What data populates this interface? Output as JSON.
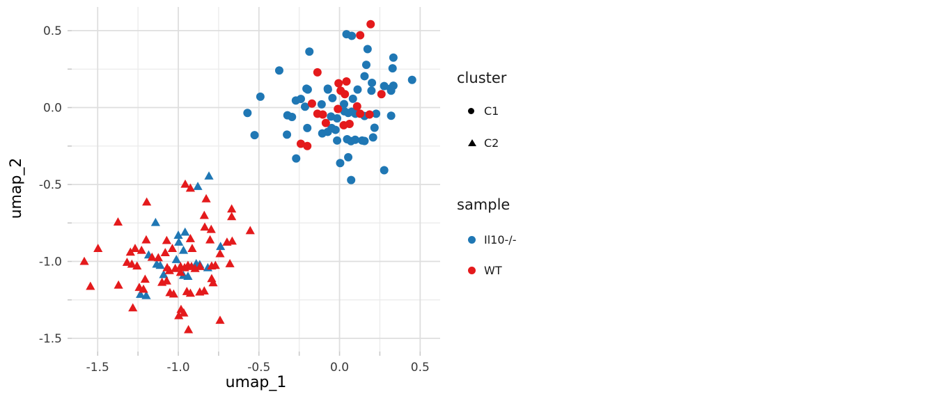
{
  "colors": {
    "blue": "#1f77b4",
    "red": "#e41a1c",
    "legend_glyph": "#000000",
    "grid_major": "#dedede",
    "grid_minor": "#ececec",
    "tick_mark": "#c9c9c9",
    "tick_text": "#3a3a3a",
    "axis_title": "#000000"
  },
  "legend": {
    "cluster": {
      "title": "cluster",
      "items": [
        {
          "label": "C1",
          "marker": "circle"
        },
        {
          "label": "C2",
          "marker": "triangle"
        }
      ]
    },
    "sample": {
      "title": "sample",
      "items": [
        {
          "label": "Il10-/-",
          "color": "#1f77b4"
        },
        {
          "label": "WT",
          "color": "#e41a1c"
        }
      ]
    }
  },
  "chart_data": {
    "type": "scatter",
    "title": "",
    "xlabel": "umap_1",
    "ylabel": "umap_2",
    "xlim": [
      -1.661,
      0.624
    ],
    "ylim": [
      -1.586,
      0.654
    ],
    "x_major_ticks": [
      -1.5,
      -1.0,
      -0.5,
      0.0,
      0.5
    ],
    "x_tick_labels": [
      "-1.5",
      "-1.0",
      "-0.5",
      "0.0",
      "0.5"
    ],
    "x_minor_ticks": [
      -1.25,
      -0.75,
      -0.25,
      0.25
    ],
    "y_major_ticks": [
      0.5,
      0.0,
      -0.5,
      -1.0,
      -1.5
    ],
    "y_tick_labels": [
      "0.5",
      "0.0",
      "-0.5",
      "-1.0",
      "-1.5"
    ],
    "y_minor_ticks": [
      0.25,
      -0.25,
      -0.75,
      -1.25
    ],
    "grid": true,
    "legend_position": "right",
    "series": [
      {
        "name": "C1 Il10-/-",
        "cluster": "C1",
        "sample": "Il10-/-",
        "marker": "circle",
        "color": "#1f77b4",
        "points": [
          [
            0.043,
            0.477
          ],
          [
            0.076,
            0.466
          ],
          [
            0.174,
            0.38
          ],
          [
            -0.187,
            0.364
          ],
          [
            0.334,
            0.325
          ],
          [
            0.166,
            0.278
          ],
          [
            0.329,
            0.255
          ],
          [
            -0.374,
            0.241
          ],
          [
            0.155,
            0.204
          ],
          [
            0.45,
            0.18
          ],
          [
            0.201,
            0.161
          ],
          [
            0.277,
            0.14
          ],
          [
            0.32,
            0.11
          ],
          [
            -0.491,
            0.071
          ],
          [
            -0.197,
            0.117
          ],
          [
            -0.072,
            0.117
          ],
          [
            0.083,
            0.057
          ],
          [
            0.112,
            0.117
          ],
          [
            0.317,
            0.124
          ],
          [
            0.334,
            0.142
          ],
          [
            0.198,
            0.11
          ],
          [
            -0.271,
            0.046
          ],
          [
            -0.24,
            0.056
          ],
          [
            -0.214,
            0.006
          ],
          [
            -0.111,
            0.021
          ],
          [
            -0.571,
            -0.035
          ],
          [
            -0.323,
            -0.05
          ],
          [
            -0.295,
            -0.061
          ],
          [
            -0.053,
            -0.058
          ],
          [
            0.03,
            -0.024
          ],
          [
            0.054,
            -0.035
          ],
          [
            0.076,
            -0.027
          ],
          [
            0.098,
            -0.04
          ],
          [
            0.227,
            -0.04
          ],
          [
            0.32,
            -0.053
          ],
          [
            -0.049,
            -0.133
          ],
          [
            -0.025,
            -0.145
          ],
          [
            -0.2,
            -0.133
          ],
          [
            -0.326,
            -0.176
          ],
          [
            -0.527,
            -0.179
          ],
          [
            0.217,
            -0.131
          ],
          [
            -0.107,
            -0.168
          ],
          [
            -0.073,
            -0.158
          ],
          [
            -0.015,
            -0.214
          ],
          [
            0.047,
            -0.206
          ],
          [
            0.071,
            -0.218
          ],
          [
            0.097,
            -0.209
          ],
          [
            0.14,
            -0.214
          ],
          [
            0.155,
            -0.217
          ],
          [
            0.208,
            -0.194
          ],
          [
            -0.269,
            -0.331
          ],
          [
            0.004,
            -0.361
          ],
          [
            0.054,
            -0.323
          ],
          [
            0.277,
            -0.407
          ],
          [
            0.072,
            -0.471
          ],
          [
            -0.205,
            0.123
          ],
          [
            -0.073,
            0.123
          ],
          [
            -0.044,
            0.062
          ],
          [
            0.028,
            0.023
          ],
          [
            -0.015,
            -0.07
          ],
          [
            0.155,
            -0.055
          ]
        ]
      },
      {
        "name": "C1 WT",
        "cluster": "C1",
        "sample": "WT",
        "marker": "circle",
        "color": "#e41a1c",
        "points": [
          [
            0.128,
            0.47
          ],
          [
            0.193,
            0.542
          ],
          [
            -0.137,
            0.229
          ],
          [
            -0.006,
            0.158
          ],
          [
            0.043,
            0.17
          ],
          [
            0.007,
            0.11
          ],
          [
            0.033,
            0.087
          ],
          [
            0.26,
            0.087
          ],
          [
            -0.171,
            0.026
          ],
          [
            -0.137,
            -0.04
          ],
          [
            -0.104,
            -0.045
          ],
          [
            -0.01,
            -0.009
          ],
          [
            0.128,
            -0.04
          ],
          [
            0.186,
            -0.045
          ],
          [
            -0.085,
            -0.1
          ],
          [
            0.026,
            -0.115
          ],
          [
            0.062,
            -0.106
          ],
          [
            -0.24,
            -0.235
          ],
          [
            -0.2,
            -0.25
          ],
          [
            0.109,
            0.008
          ]
        ]
      },
      {
        "name": "C2 Il10-/-",
        "cluster": "C2",
        "sample": "Il10-/-",
        "marker": "triangle",
        "color": "#1f77b4",
        "points": [
          [
            -0.81,
            -0.447
          ],
          [
            -0.879,
            -0.515
          ],
          [
            -1.141,
            -0.749
          ],
          [
            -1.0,
            -0.832
          ],
          [
            -0.958,
            -0.812
          ],
          [
            -0.997,
            -0.877
          ],
          [
            -0.968,
            -0.93
          ],
          [
            -0.738,
            -0.905
          ],
          [
            -1.184,
            -0.96
          ],
          [
            -1.012,
            -0.99
          ],
          [
            -1.134,
            -1.02
          ],
          [
            -1.112,
            -1.028
          ],
          [
            -0.889,
            -1.017
          ],
          [
            -0.867,
            -1.023
          ],
          [
            -0.817,
            -1.043
          ],
          [
            -1.091,
            -1.088
          ],
          [
            -0.968,
            -1.093
          ],
          [
            -0.94,
            -1.099
          ],
          [
            -1.235,
            -1.216
          ],
          [
            -1.199,
            -1.224
          ]
        ]
      },
      {
        "name": "C2 WT",
        "cluster": "C2",
        "sample": "WT",
        "marker": "triangle",
        "color": "#e41a1c",
        "points": [
          [
            -0.957,
            -0.5
          ],
          [
            -0.925,
            -0.526
          ],
          [
            -0.827,
            -0.595
          ],
          [
            -1.196,
            -0.616
          ],
          [
            -0.669,
            -0.661
          ],
          [
            -0.669,
            -0.711
          ],
          [
            -1.374,
            -0.746
          ],
          [
            -0.839,
            -0.703
          ],
          [
            -0.836,
            -0.779
          ],
          [
            -0.796,
            -0.794
          ],
          [
            -0.554,
            -0.802
          ],
          [
            -0.803,
            -0.862
          ],
          [
            -1.498,
            -0.918
          ],
          [
            -1.199,
            -0.862
          ],
          [
            -1.268,
            -0.918
          ],
          [
            -1.228,
            -0.93
          ],
          [
            -1.297,
            -0.942
          ],
          [
            -1.072,
            -0.866
          ],
          [
            -1.037,
            -0.918
          ],
          [
            -1.081,
            -0.945
          ],
          [
            -0.925,
            -0.854
          ],
          [
            -0.914,
            -0.918
          ],
          [
            -0.741,
            -0.952
          ],
          [
            -0.698,
            -0.877
          ],
          [
            -0.666,
            -0.87
          ],
          [
            -0.68,
            -1.017
          ],
          [
            -1.583,
            -1.002
          ],
          [
            -1.545,
            -1.164
          ],
          [
            -1.318,
            -1.008
          ],
          [
            -1.288,
            -1.02
          ],
          [
            -1.256,
            -1.032
          ],
          [
            -1.371,
            -1.156
          ],
          [
            -1.163,
            -0.975
          ],
          [
            -1.124,
            -0.978
          ],
          [
            -1.069,
            -1.043
          ],
          [
            -1.055,
            -1.062
          ],
          [
            -1.019,
            -1.048
          ],
          [
            -0.986,
            -1.035
          ],
          [
            -0.961,
            -1.043
          ],
          [
            -0.986,
            -1.073
          ],
          [
            -0.94,
            -1.028
          ],
          [
            -0.918,
            -1.035
          ],
          [
            -0.896,
            -1.048
          ],
          [
            -0.865,
            -1.035
          ],
          [
            -0.793,
            -1.032
          ],
          [
            -0.77,
            -1.028
          ],
          [
            -0.793,
            -1.114
          ],
          [
            -0.784,
            -1.141
          ],
          [
            -1.206,
            -1.118
          ],
          [
            -1.101,
            -1.138
          ],
          [
            -1.072,
            -1.129
          ],
          [
            -1.242,
            -1.171
          ],
          [
            -1.216,
            -1.183
          ],
          [
            -1.052,
            -1.205
          ],
          [
            -1.029,
            -1.214
          ],
          [
            -0.947,
            -1.198
          ],
          [
            -0.925,
            -1.209
          ],
          [
            -0.867,
            -1.201
          ],
          [
            -0.839,
            -1.194
          ],
          [
            -1.282,
            -1.304
          ],
          [
            -0.983,
            -1.314
          ],
          [
            -0.966,
            -1.337
          ],
          [
            -0.997,
            -1.355
          ],
          [
            -0.741,
            -1.385
          ],
          [
            -0.937,
            -1.446
          ]
        ]
      }
    ]
  }
}
